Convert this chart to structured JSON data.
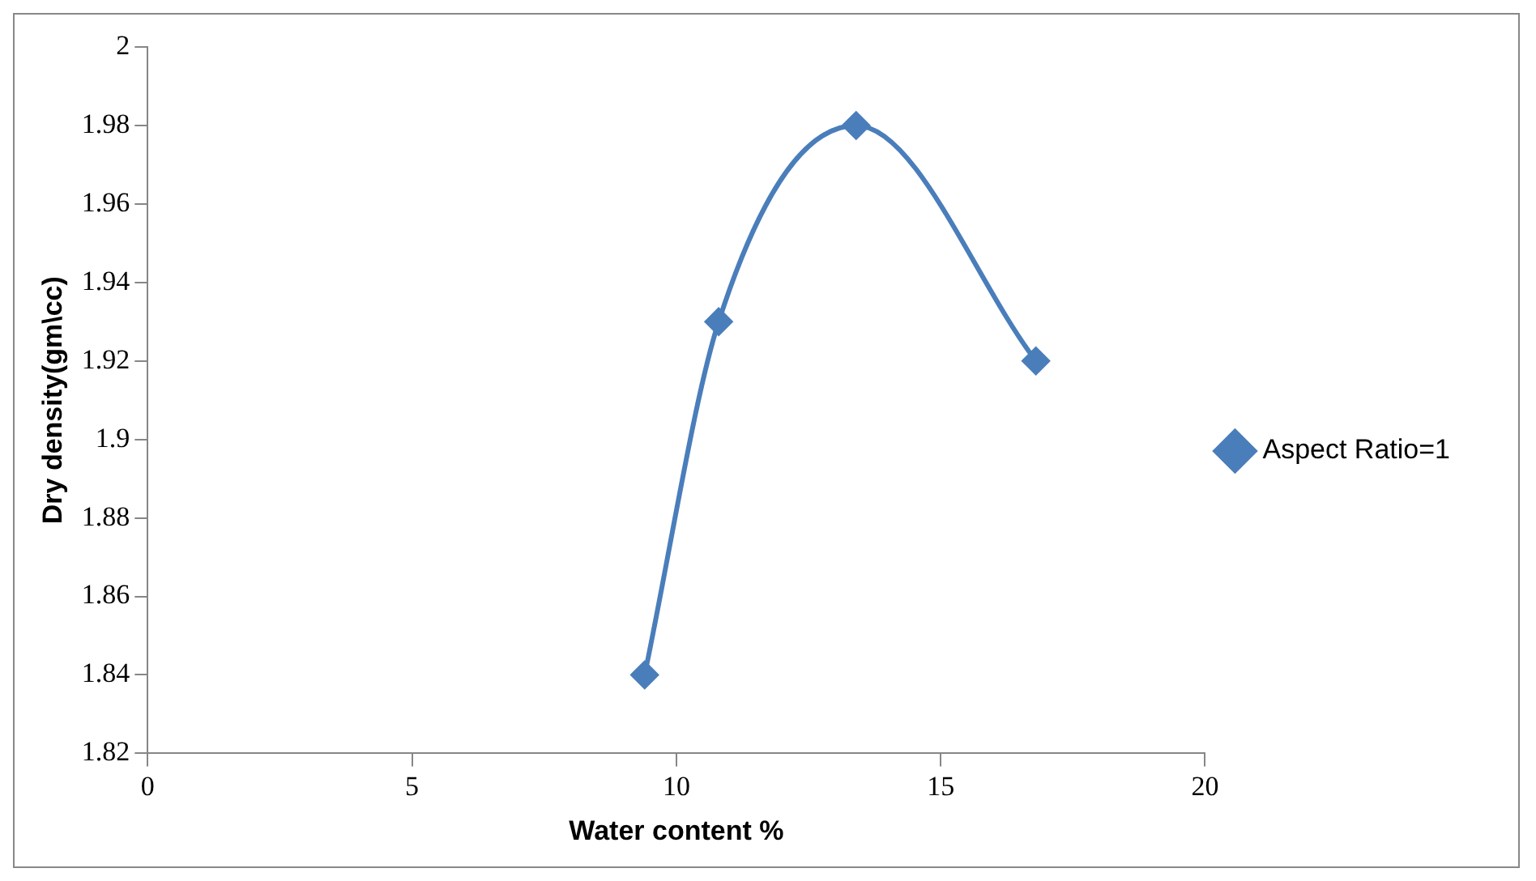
{
  "chart_data": {
    "type": "line",
    "xlabel": "Water content %",
    "ylabel": "Dry density(gm\\cc)",
    "x": [
      9.4,
      10.8,
      13.4,
      16.8
    ],
    "series": [
      {
        "name": "Aspect Ratio=1",
        "color": "#4a7ebb",
        "values": [
          1.84,
          1.93,
          1.98,
          1.92
        ]
      }
    ],
    "xlim": [
      0,
      20
    ],
    "xticks": [
      0,
      5,
      10,
      15,
      20
    ],
    "ylim": [
      1.82,
      2
    ],
    "yticks": [
      1.82,
      1.84,
      1.86,
      1.88,
      1.9,
      1.92,
      1.94,
      1.96,
      1.98,
      2
    ],
    "grid": false,
    "legend": "right",
    "marker": "diamond",
    "line_style": "solid"
  }
}
